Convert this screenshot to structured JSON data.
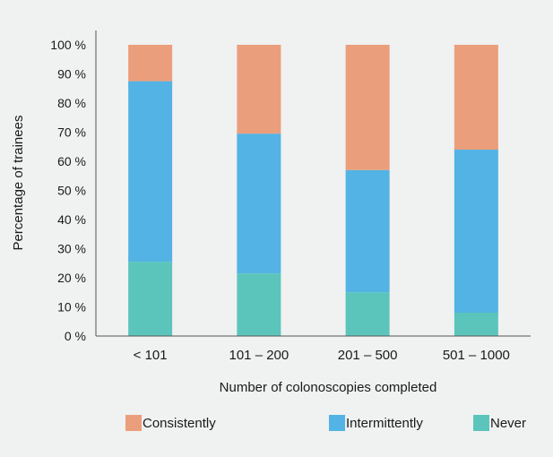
{
  "chart_data": {
    "type": "bar",
    "stacked": true,
    "categories": [
      "< 101",
      "101 – 200",
      "201 – 500",
      "501 – 1000"
    ],
    "series": [
      {
        "name": "Never",
        "values": [
          25.5,
          21.5,
          15,
          8
        ],
        "color": "#5bc5bb"
      },
      {
        "name": "Intermittently",
        "values": [
          62,
          48,
          42,
          56
        ],
        "color": "#52b3e4"
      },
      {
        "name": "Consistently",
        "values": [
          12.5,
          30.5,
          43,
          36
        ],
        "color": "#eb9e7b"
      }
    ],
    "y_ticks": [
      "0 %",
      "10 %",
      "20 %",
      "30 %",
      "40 %",
      "50 %",
      "60 %",
      "70 %",
      "80 %",
      "90 %",
      "100 %"
    ],
    "ylim": [
      0,
      100
    ],
    "xlabel": "Number of colonoscopies completed",
    "ylabel": "Percentage of trainees",
    "grid": false,
    "legend": {
      "position": "bottom",
      "items": [
        "Consistently",
        "Intermittently",
        "Never"
      ]
    }
  }
}
